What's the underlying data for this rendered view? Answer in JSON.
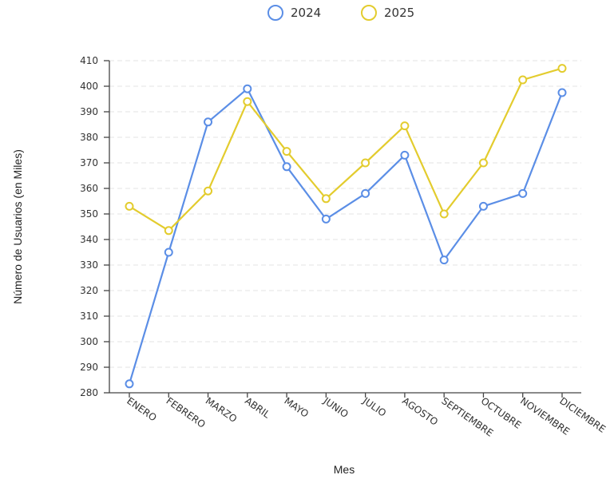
{
  "chart_data": {
    "type": "line",
    "xlabel": "Mes",
    "ylabel": "Número de Usuarios (en Miles)",
    "categories": [
      "ENERO",
      "FEBRERO",
      "MARZO",
      "ABRIL",
      "MAYO",
      "JUNIO",
      "JULIO",
      "AGOSTO",
      "SEPTIEMBRE",
      "OCTUBRE",
      "NOVIEMBRE",
      "DICIEMBRE"
    ],
    "ylim": [
      280,
      410
    ],
    "yticks": [
      280,
      290,
      300,
      310,
      320,
      330,
      340,
      350,
      360,
      370,
      380,
      390,
      400,
      410
    ],
    "grid": true,
    "legend_position": "top-center",
    "series": [
      {
        "name": "2024",
        "color": "#5b8ee6",
        "values": [
          283.5,
          335,
          386,
          399,
          368.5,
          348,
          358,
          373,
          332,
          353,
          358,
          397.5
        ]
      },
      {
        "name": "2025",
        "color": "#e3cc2e",
        "values": [
          353,
          343.5,
          359,
          394,
          374.5,
          356,
          370,
          384.5,
          350,
          370,
          402.5,
          407
        ]
      }
    ]
  }
}
